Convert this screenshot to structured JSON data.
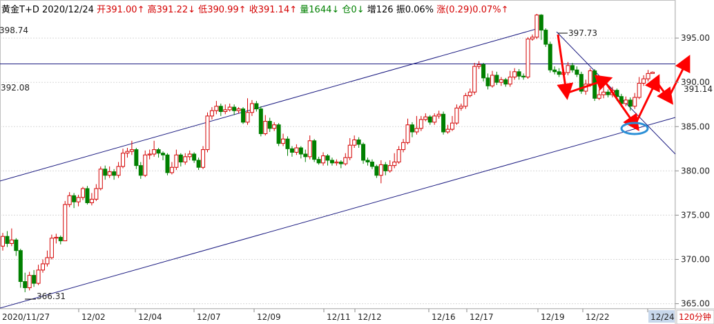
{
  "header": {
    "name": "黄金T+D",
    "date": "2020/12/24",
    "open_label": "开",
    "open": "391.00↑",
    "high_label": "高",
    "high": "391.22↓",
    "low_label": "低",
    "low": "390.99↑",
    "close_label": "收",
    "close": "391.14↑",
    "vol_label": "量",
    "vol": "1644↓",
    "pos_label": "仓",
    "pos": "0↓",
    "inc_label": "增",
    "inc": "126",
    "amp_label": "振",
    "amp": "0.06%",
    "chg_label": "涨",
    "chg": "(0.29)0.07%↑"
  },
  "period": "120分钟",
  "annotations": {
    "top_left_level": "398.74",
    "hline_level": "392.08",
    "peak_label": "397.73",
    "trough_label": "366.31",
    "last_price": "391.14"
  },
  "colors": {
    "up": "#d40000",
    "down": "#008000",
    "line": "#1a1a80",
    "arrow": "#ff0000",
    "ellipse": "#2a8fd6"
  },
  "chart_data": {
    "type": "candlestick",
    "ylim": [
      364.5,
      399.3
    ],
    "y_ticks": [
      365,
      370,
      375,
      380,
      385,
      390,
      395
    ],
    "y_tick_labels": [
      "365.00",
      "370.00",
      "375.00",
      "380.00",
      "385.00",
      "390.00",
      "395.00"
    ],
    "x_labels": [
      "2020/11/27",
      "12/02",
      "12/04",
      "12/07",
      "12/09",
      "12/11",
      "12/12",
      "12/16",
      "12/17",
      "12/19",
      "12/22",
      "12/24"
    ],
    "highlighted_x_label": "12/24",
    "hline": 392.08,
    "candles": [
      [
        371.5,
        372.6,
        373.0,
        371.0
      ],
      [
        372.6,
        371.8,
        373.2,
        371.4
      ],
      [
        371.8,
        372.2,
        373.5,
        371.5
      ],
      [
        372.2,
        371.0,
        372.4,
        370.4
      ],
      [
        371.0,
        367.5,
        371.2,
        366.8
      ],
      [
        367.5,
        366.8,
        368.5,
        366.3
      ],
      [
        366.8,
        368.2,
        368.6,
        366.5
      ],
      [
        368.2,
        367.3,
        368.8,
        366.9
      ],
      [
        367.3,
        368.8,
        369.4,
        367.1
      ],
      [
        368.8,
        369.5,
        370.0,
        368.5
      ],
      [
        369.5,
        370.2,
        371.0,
        369.2
      ],
      [
        370.2,
        372.4,
        372.8,
        370.0
      ],
      [
        372.4,
        372.5,
        372.9,
        371.8
      ],
      [
        372.5,
        372.1,
        372.7,
        371.7
      ],
      [
        372.1,
        376.2,
        376.6,
        375.3
      ],
      [
        376.2,
        377.2,
        377.6,
        375.9
      ],
      [
        377.2,
        376.5,
        377.5,
        375.8
      ],
      [
        376.5,
        377.0,
        377.3,
        376.0
      ],
      [
        377.0,
        378.0,
        378.2,
        376.7
      ],
      [
        378.0,
        376.4,
        378.3,
        376.2
      ],
      [
        376.4,
        376.8,
        377.5,
        376.1
      ],
      [
        376.8,
        378.0,
        378.5,
        376.6
      ],
      [
        378.0,
        380.2,
        380.5,
        377.8
      ],
      [
        380.2,
        379.5,
        380.6,
        379.0
      ],
      [
        379.5,
        379.9,
        380.5,
        379.2
      ],
      [
        379.9,
        379.5,
        380.2,
        379.0
      ],
      [
        379.5,
        380.5,
        381.0,
        379.2
      ],
      [
        380.5,
        382.0,
        382.5,
        380.3
      ],
      [
        382.0,
        382.2,
        382.6,
        381.5
      ],
      [
        382.2,
        382.4,
        383.4,
        381.8
      ],
      [
        382.4,
        380.6,
        382.6,
        380.2
      ],
      [
        380.6,
        379.5,
        381.0,
        379.1
      ],
      [
        379.5,
        381.8,
        382.3,
        379.3
      ],
      [
        381.8,
        381.9,
        382.4,
        381.3
      ],
      [
        381.9,
        382.4,
        383.4,
        381.6
      ],
      [
        382.4,
        382.0,
        382.6,
        381.5
      ],
      [
        382.0,
        381.8,
        382.2,
        381.2
      ],
      [
        381.8,
        379.8,
        382.0,
        379.5
      ],
      [
        379.8,
        380.4,
        381.0,
        379.6
      ],
      [
        380.4,
        381.8,
        382.4,
        380.1
      ],
      [
        381.8,
        381.0,
        382.0,
        380.5
      ],
      [
        381.0,
        381.6,
        382.0,
        380.7
      ],
      [
        381.6,
        381.9,
        382.3,
        381.2
      ],
      [
        381.9,
        381.2,
        382.1,
        380.9
      ],
      [
        381.2,
        380.4,
        381.5,
        380.1
      ],
      [
        380.4,
        382.4,
        382.8,
        380.2
      ],
      [
        382.4,
        386.2,
        386.6,
        382.1
      ],
      [
        386.2,
        386.8,
        387.2,
        385.8
      ],
      [
        386.8,
        387.3,
        387.9,
        386.4
      ],
      [
        387.3,
        386.7,
        387.6,
        386.2
      ],
      [
        386.7,
        386.9,
        387.5,
        386.4
      ],
      [
        386.9,
        387.2,
        387.6,
        386.7
      ],
      [
        387.2,
        386.8,
        387.5,
        386.3
      ],
      [
        386.8,
        387.0,
        387.2,
        386.5
      ],
      [
        387.0,
        385.5,
        387.2,
        385.3
      ],
      [
        385.5,
        386.6,
        388.2,
        385.2
      ],
      [
        386.6,
        387.6,
        388.0,
        386.2
      ],
      [
        387.6,
        387.0,
        387.9,
        386.7
      ],
      [
        387.0,
        384.2,
        387.3,
        383.9
      ],
      [
        384.2,
        385.6,
        386.3,
        384.0
      ],
      [
        385.6,
        384.8,
        386.0,
        384.4
      ],
      [
        384.8,
        385.2,
        385.5,
        384.5
      ],
      [
        385.2,
        383.1,
        385.4,
        382.8
      ],
      [
        383.1,
        383.6,
        384.2,
        382.8
      ],
      [
        383.6,
        382.5,
        383.9,
        381.7
      ],
      [
        382.5,
        382.1,
        382.8,
        381.6
      ],
      [
        382.1,
        382.6,
        383.0,
        381.8
      ],
      [
        382.6,
        381.9,
        382.8,
        381.4
      ],
      [
        381.9,
        381.6,
        382.4,
        381.0
      ],
      [
        381.6,
        383.4,
        384.0,
        381.3
      ],
      [
        383.4,
        381.3,
        383.6,
        381.0
      ],
      [
        381.3,
        380.9,
        381.6,
        380.7
      ],
      [
        380.9,
        381.7,
        382.1,
        380.6
      ],
      [
        381.7,
        381.2,
        381.9,
        380.6
      ],
      [
        381.2,
        380.9,
        381.5,
        380.6
      ],
      [
        380.9,
        381.0,
        381.3,
        380.6
      ],
      [
        381.0,
        380.8,
        381.2,
        380.3
      ],
      [
        380.8,
        381.5,
        382.0,
        380.6
      ],
      [
        381.5,
        382.9,
        383.7,
        381.2
      ],
      [
        382.9,
        383.5,
        384.0,
        382.6
      ],
      [
        383.5,
        383.0,
        383.8,
        382.6
      ],
      [
        383.0,
        381.2,
        383.2,
        380.8
      ],
      [
        381.2,
        381.0,
        381.5,
        380.6
      ],
      [
        381.0,
        380.5,
        381.3,
        380.2
      ],
      [
        380.5,
        379.5,
        380.7,
        379.2
      ],
      [
        379.5,
        380.7,
        381.2,
        378.6
      ],
      [
        380.7,
        380.0,
        381.0,
        379.5
      ],
      [
        380.0,
        380.6,
        381.2,
        379.8
      ],
      [
        380.6,
        381.0,
        382.0,
        380.3
      ],
      [
        381.0,
        382.4,
        382.8,
        380.8
      ],
      [
        382.4,
        383.2,
        383.6,
        382.1
      ],
      [
        383.2,
        385.2,
        385.9,
        383.0
      ],
      [
        385.2,
        384.4,
        385.5,
        383.8
      ],
      [
        384.4,
        384.8,
        386.2,
        384.1
      ],
      [
        384.8,
        385.8,
        386.2,
        384.5
      ],
      [
        385.8,
        386.1,
        386.5,
        385.6
      ],
      [
        386.1,
        385.5,
        386.3,
        385.2
      ],
      [
        385.5,
        386.2,
        386.5,
        385.2
      ],
      [
        386.2,
        386.4,
        386.8,
        385.9
      ],
      [
        386.4,
        384.4,
        386.7,
        384.1
      ],
      [
        384.4,
        384.7,
        385.2,
        384.2
      ],
      [
        384.7,
        385.4,
        386.2,
        384.5
      ],
      [
        385.4,
        387.1,
        387.5,
        385.2
      ],
      [
        387.1,
        387.3,
        387.6,
        386.8
      ],
      [
        387.3,
        388.5,
        388.8,
        387.0
      ],
      [
        388.5,
        388.9,
        389.3,
        388.3
      ],
      [
        388.9,
        391.8,
        392.2,
        388.6
      ],
      [
        391.8,
        392.0,
        392.4,
        391.5
      ],
      [
        392.0,
        390.5,
        392.2,
        390.1
      ],
      [
        390.5,
        389.6,
        391.0,
        389.2
      ],
      [
        389.6,
        390.8,
        391.3,
        389.4
      ],
      [
        390.8,
        390.0,
        391.2,
        389.7
      ],
      [
        390.0,
        390.3,
        390.6,
        389.6
      ],
      [
        390.3,
        389.8,
        390.5,
        389.5
      ],
      [
        389.8,
        390.6,
        391.3,
        389.5
      ],
      [
        390.6,
        391.2,
        391.6,
        390.3
      ],
      [
        391.2,
        390.7,
        391.5,
        390.3
      ],
      [
        390.7,
        390.6,
        391.0,
        390.3
      ],
      [
        390.6,
        394.9,
        395.1,
        390.4
      ],
      [
        394.9,
        395.1,
        395.4,
        394.7
      ],
      [
        395.1,
        397.6,
        397.73,
        394.9
      ],
      [
        397.6,
        395.9,
        397.7,
        394.8
      ],
      [
        395.9,
        394.3,
        396.1,
        394.0
      ],
      [
        394.3,
        391.4,
        394.6,
        391.1
      ],
      [
        391.4,
        391.2,
        391.8,
        390.9
      ],
      [
        391.2,
        390.9,
        391.6,
        390.6
      ],
      [
        390.9,
        391.1,
        391.5,
        390.7
      ],
      [
        391.1,
        391.9,
        392.3,
        390.8
      ],
      [
        391.9,
        391.4,
        392.2,
        391.1
      ],
      [
        391.4,
        390.9,
        391.8,
        390.6
      ],
      [
        390.9,
        389.0,
        391.2,
        388.7
      ],
      [
        389.0,
        389.8,
        390.3,
        388.6
      ],
      [
        389.8,
        391.3,
        391.6,
        389.5
      ],
      [
        391.3,
        388.2,
        391.5,
        387.9
      ],
      [
        388.2,
        388.6,
        389.2,
        388.0
      ],
      [
        388.6,
        388.9,
        389.6,
        388.2
      ],
      [
        388.9,
        388.6,
        389.2,
        388.3
      ],
      [
        388.6,
        389.1,
        389.5,
        388.3
      ],
      [
        389.1,
        388.4,
        389.3,
        387.9
      ],
      [
        388.4,
        387.6,
        388.7,
        387.2
      ],
      [
        387.6,
        388.0,
        388.4,
        387.3
      ],
      [
        388.0,
        387.3,
        388.3,
        386.8
      ],
      [
        387.3,
        388.3,
        388.8,
        387.0
      ],
      [
        388.3,
        389.9,
        390.6,
        388.1
      ],
      [
        389.9,
        390.4,
        390.8,
        389.6
      ],
      [
        390.4,
        391.0,
        391.4,
        390.1
      ],
      [
        391.0,
        391.14,
        391.22,
        390.99
      ]
    ]
  }
}
